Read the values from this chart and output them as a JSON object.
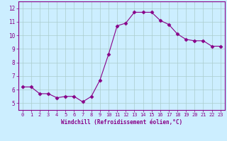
{
  "x": [
    0,
    1,
    2,
    3,
    4,
    5,
    6,
    7,
    8,
    9,
    10,
    11,
    12,
    13,
    14,
    15,
    16,
    17,
    18,
    19,
    20,
    21,
    22,
    23
  ],
  "y": [
    6.2,
    6.2,
    5.7,
    5.7,
    5.4,
    5.5,
    5.5,
    5.1,
    5.5,
    6.7,
    8.6,
    10.7,
    10.9,
    11.7,
    11.7,
    11.7,
    11.1,
    10.8,
    10.1,
    9.7,
    9.6,
    9.6,
    9.2,
    9.2
  ],
  "line_color": "#880088",
  "marker": "D",
  "marker_size": 2.5,
  "bg_color": "#cceeff",
  "grid_color": "#aacccc",
  "xlabel": "Windchill (Refroidissement éolien,°C)",
  "xlabel_color": "#880088",
  "tick_color": "#880088",
  "spine_color": "#880088",
  "ylim": [
    4.5,
    12.5
  ],
  "xlim": [
    -0.5,
    23.5
  ],
  "yticks": [
    5,
    6,
    7,
    8,
    9,
    10,
    11,
    12
  ],
  "xtick_labels": [
    "0",
    "1",
    "2",
    "3",
    "4",
    "5",
    "6",
    "7",
    "8",
    "9",
    "10",
    "11",
    "12",
    "13",
    "14",
    "15",
    "16",
    "17",
    "18",
    "19",
    "20",
    "21",
    "22",
    "23"
  ]
}
